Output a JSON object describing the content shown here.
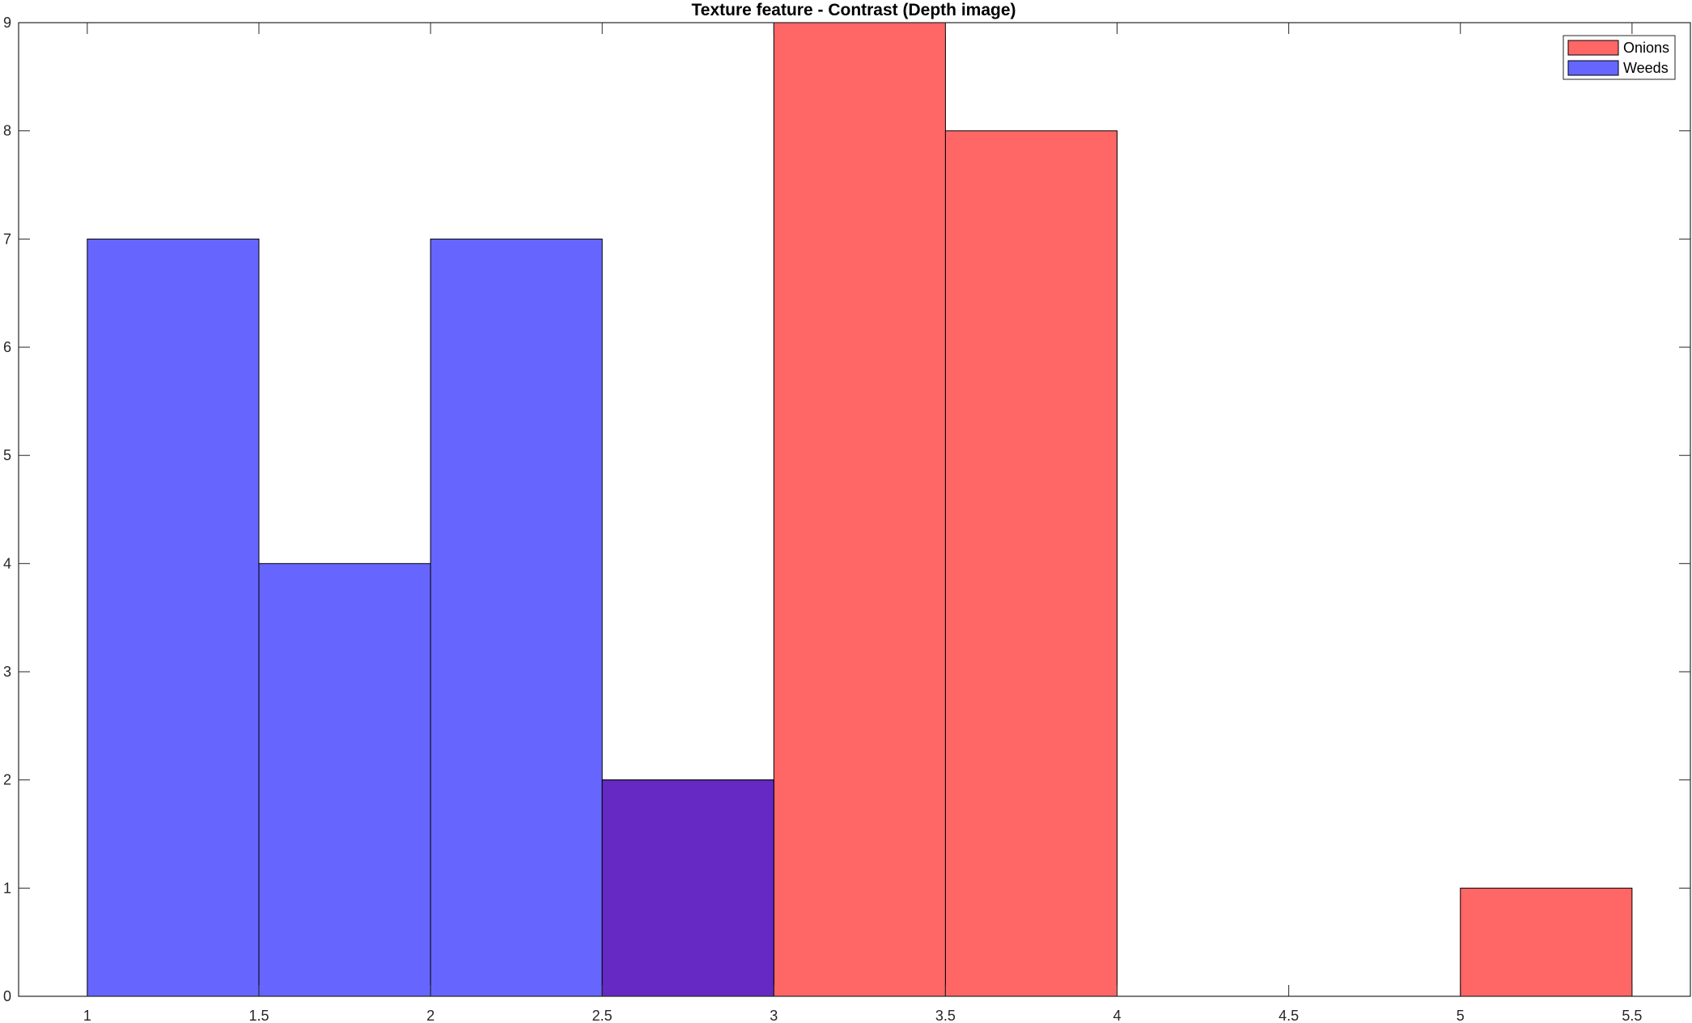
{
  "chart_data": {
    "type": "bar",
    "title": "Texture feature - Contrast (Depth image)",
    "xlabel": "",
    "ylabel": "",
    "bin_width": 0.5,
    "xlim": [
      0.8,
      5.67
    ],
    "ylim": [
      0,
      9
    ],
    "x_ticks": [
      "1",
      "1.5",
      "2",
      "2.5",
      "3",
      "3.5",
      "4",
      "4.5",
      "5",
      "5.5"
    ],
    "y_ticks": [
      "0",
      "1",
      "2",
      "3",
      "4",
      "5",
      "6",
      "7",
      "8",
      "9"
    ],
    "grid": false,
    "legend_position": "top-right",
    "series": [
      {
        "name": "Onions",
        "color": "#ff6666",
        "bins": [
          {
            "x0": 2.5,
            "x1": 3.0,
            "value": 2
          },
          {
            "x0": 3.0,
            "x1": 3.5,
            "value": 9
          },
          {
            "x0": 3.5,
            "x1": 4.0,
            "value": 8
          },
          {
            "x0": 5.0,
            "x1": 5.5,
            "value": 1
          }
        ]
      },
      {
        "name": "Weeds",
        "color": "#6666ff",
        "bins": [
          {
            "x0": 1.0,
            "x1": 1.5,
            "value": 7
          },
          {
            "x0": 1.5,
            "x1": 2.0,
            "value": 4
          },
          {
            "x0": 2.0,
            "x1": 2.5,
            "value": 7
          },
          {
            "x0": 2.5,
            "x1": 3.0,
            "value": 2
          }
        ]
      }
    ],
    "overlap_color": "#6629c3"
  }
}
